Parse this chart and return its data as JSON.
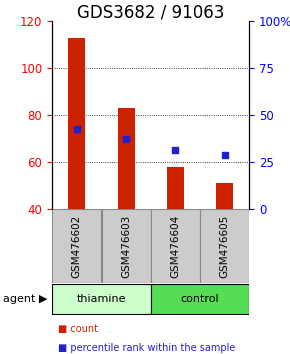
{
  "title": "GDS3682 / 91063",
  "samples": [
    "GSM476602",
    "GSM476603",
    "GSM476604",
    "GSM476605"
  ],
  "bar_values": [
    113,
    83,
    58,
    51
  ],
  "blue_values": [
    74,
    70,
    65,
    63
  ],
  "bar_bottom": 40,
  "ylim_left": [
    40,
    120
  ],
  "ylim_right": [
    0,
    100
  ],
  "yticks_left": [
    40,
    60,
    80,
    100,
    120
  ],
  "yticks_right": [
    0,
    25,
    50,
    75,
    100
  ],
  "yticklabels_right": [
    "0",
    "25",
    "50",
    "75",
    "100%"
  ],
  "bar_color": "#cc2200",
  "blue_color": "#2222cc",
  "agent_groups": [
    {
      "label": "thiamine",
      "indices": [
        0,
        1
      ],
      "color": "#ccffcc"
    },
    {
      "label": "control",
      "indices": [
        2,
        3
      ],
      "color": "#55dd55"
    }
  ],
  "agent_label": "agent",
  "legend_items": [
    {
      "label": "count",
      "color": "#cc2200"
    },
    {
      "label": "percentile rank within the sample",
      "color": "#2222cc"
    }
  ],
  "grid_yticks": [
    60,
    80,
    100
  ],
  "sample_box_color": "#cccccc",
  "title_fontsize": 12,
  "tick_fontsize": 8.5,
  "bar_width": 0.35
}
